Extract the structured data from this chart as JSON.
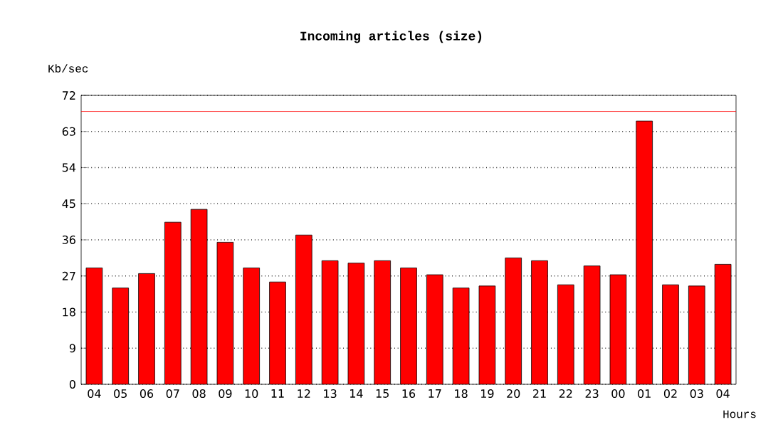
{
  "chart_data": {
    "type": "bar",
    "title": "Incoming articles (size)",
    "xlabel": "Hours",
    "ylabel": "Kb/sec",
    "categories": [
      "04",
      "05",
      "06",
      "07",
      "08",
      "09",
      "10",
      "11",
      "12",
      "13",
      "14",
      "15",
      "16",
      "17",
      "18",
      "19",
      "20",
      "21",
      "22",
      "23",
      "00",
      "01",
      "02",
      "03",
      "04"
    ],
    "values": [
      29.0,
      24.0,
      27.6,
      40.4,
      43.6,
      35.4,
      29.0,
      25.5,
      37.2,
      30.8,
      30.2,
      30.8,
      29.0,
      27.3,
      24.0,
      24.5,
      31.5,
      30.8,
      24.8,
      29.5,
      27.3,
      65.6,
      24.8,
      24.5,
      29.9
    ],
    "color": "#ff0000",
    "ylim": [
      0,
      72
    ],
    "yticks": [
      0,
      9,
      18,
      27,
      36,
      45,
      54,
      63,
      72
    ],
    "grid": "y",
    "ref_lines": [
      {
        "axis": "y",
        "value": 68,
        "color": "#ff0000",
        "line_style": "solid"
      }
    ]
  }
}
